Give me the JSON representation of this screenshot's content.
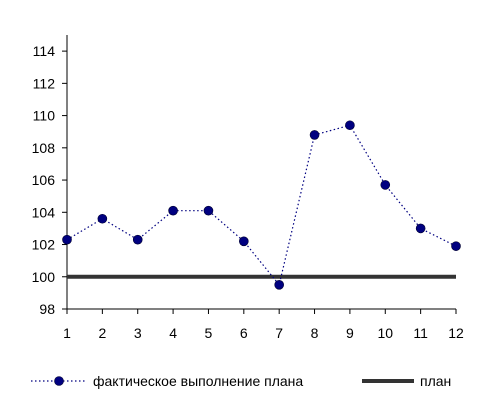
{
  "chart_data": {
    "type": "line",
    "title": "",
    "xlabel": "",
    "ylabel": "",
    "x": [
      1,
      2,
      3,
      4,
      5,
      6,
      7,
      8,
      9,
      10,
      11,
      12
    ],
    "x_tick_labels": [
      "1",
      "2",
      "3",
      "4",
      "5",
      "6",
      "7",
      "8",
      "9",
      "10",
      "11",
      "12"
    ],
    "ylim": [
      98,
      115
    ],
    "y_ticks": [
      98,
      100,
      102,
      104,
      106,
      108,
      110,
      112,
      114
    ],
    "y_tick_labels": [
      "98",
      "100",
      "102",
      "104",
      "106",
      "108",
      "110",
      "112",
      "114"
    ],
    "grid": false,
    "legend_position": "bottom",
    "series": [
      {
        "name": "фактическое выполнение плана",
        "values": [
          102.3,
          103.6,
          102.3,
          104.1,
          104.1,
          102.2,
          99.5,
          108.8,
          109.4,
          105.7,
          103.0,
          101.9
        ],
        "color": "#000080",
        "line_style": "dotted",
        "marker": "circle"
      },
      {
        "name": "план",
        "values": [
          100,
          100,
          100,
          100,
          100,
          100,
          100,
          100,
          100,
          100,
          100,
          100
        ],
        "color": "#333333",
        "line_style": "solid",
        "marker": "none"
      }
    ]
  }
}
